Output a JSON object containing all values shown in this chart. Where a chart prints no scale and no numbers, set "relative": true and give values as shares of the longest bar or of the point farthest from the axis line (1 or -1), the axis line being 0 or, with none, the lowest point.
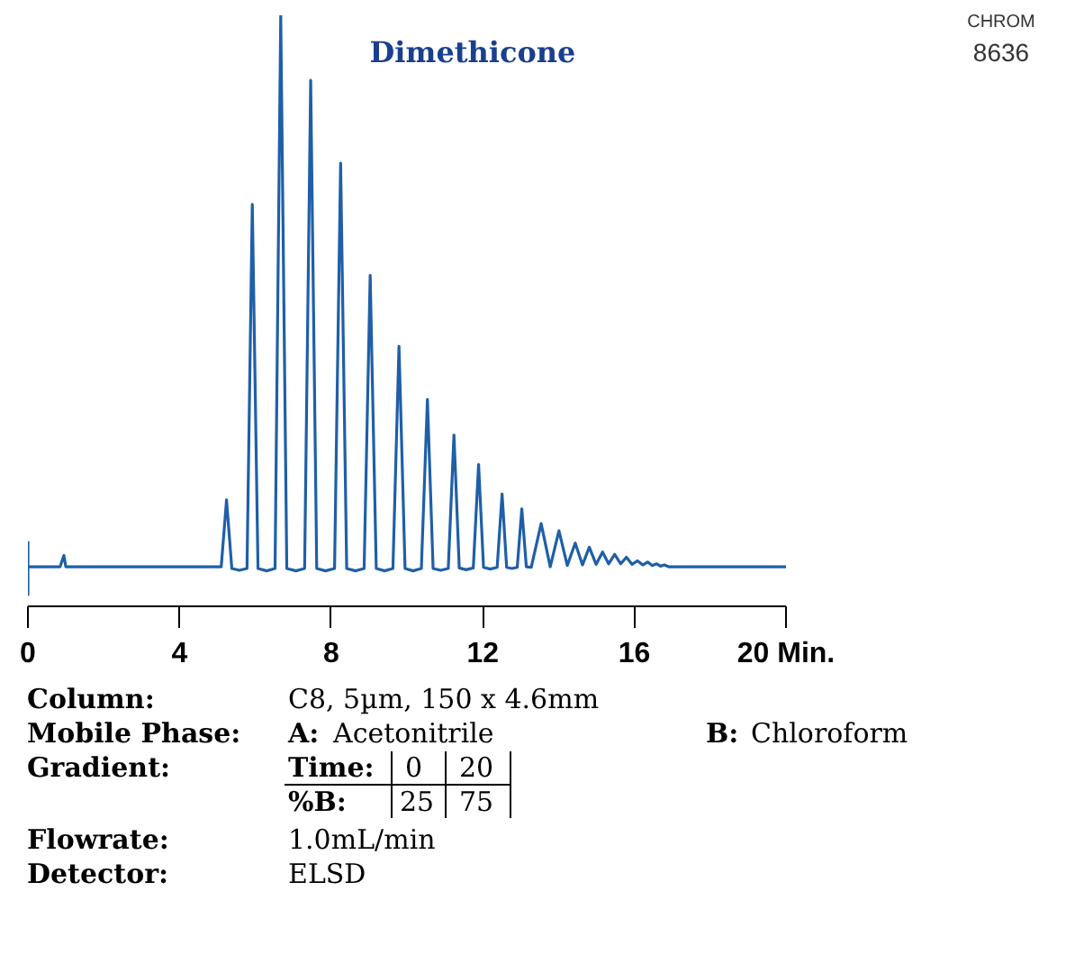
{
  "chart_data": {
    "type": "line",
    "relative": true,
    "title": "Dimethicone",
    "color": "#1f5fa8",
    "xlim": [
      0,
      20
    ],
    "xticks": [
      0,
      4,
      8,
      12,
      16,
      {
        "value": 20,
        "label": "20 Min."
      }
    ],
    "x": [
      0,
      0,
      0,
      0.85,
      0.95,
      1.0,
      5.1,
      5.24,
      5.38,
      5.58,
      5.78,
      5.92,
      6.07,
      6.3,
      6.52,
      6.67,
      6.83,
      7.07,
      7.3,
      7.46,
      7.62,
      7.85,
      8.09,
      8.25,
      8.41,
      8.64,
      8.87,
      9.03,
      9.19,
      9.41,
      9.63,
      9.79,
      9.95,
      10.16,
      10.38,
      10.54,
      10.69,
      10.89,
      11.09,
      11.24,
      11.38,
      11.56,
      11.75,
      11.89,
      12.02,
      12.2,
      12.38,
      12.51,
      12.63,
      12.77,
      12.91,
      13.03,
      13.15,
      13.28,
      13.54,
      13.78,
      14.01,
      14.23,
      14.44,
      14.63,
      14.81,
      14.99,
      15.16,
      15.32,
      15.48,
      15.64,
      15.79,
      15.94,
      16.08,
      16.22,
      16.35,
      16.47,
      16.59,
      16.69,
      16.79,
      16.9,
      20
    ],
    "values": [
      0.11,
      0.02,
      0.067,
      0.067,
      0.086,
      0.067,
      0.067,
      0.18,
      0.064,
      0.061,
      0.064,
      0.68,
      0.064,
      0.06,
      0.064,
      1.0,
      0.064,
      0.06,
      0.064,
      0.89,
      0.064,
      0.06,
      0.064,
      0.75,
      0.064,
      0.06,
      0.064,
      0.56,
      0.064,
      0.06,
      0.064,
      0.44,
      0.064,
      0.06,
      0.064,
      0.35,
      0.064,
      0.061,
      0.064,
      0.29,
      0.065,
      0.062,
      0.065,
      0.24,
      0.066,
      0.063,
      0.066,
      0.19,
      0.066,
      0.064,
      0.066,
      0.165,
      0.067,
      0.066,
      0.14,
      0.067,
      0.128,
      0.069,
      0.107,
      0.07,
      0.1,
      0.071,
      0.092,
      0.072,
      0.088,
      0.072,
      0.083,
      0.071,
      0.077,
      0.07,
      0.075,
      0.069,
      0.072,
      0.068,
      0.07,
      0.067,
      0.067
    ],
    "annotations": [
      "CHROM",
      "8636",
      "Column:",
      "C8, 5µm, 150 x 4.6mm",
      "Mobile Phase:",
      "A:",
      "Acetonitrile",
      "B:",
      "Chloroform",
      "Gradient:",
      "Time:",
      "0",
      "20",
      "%B:",
      "25",
      "75",
      "Flowrate:",
      "1.0mL/min",
      "Detector:",
      "ELSD"
    ]
  }
}
